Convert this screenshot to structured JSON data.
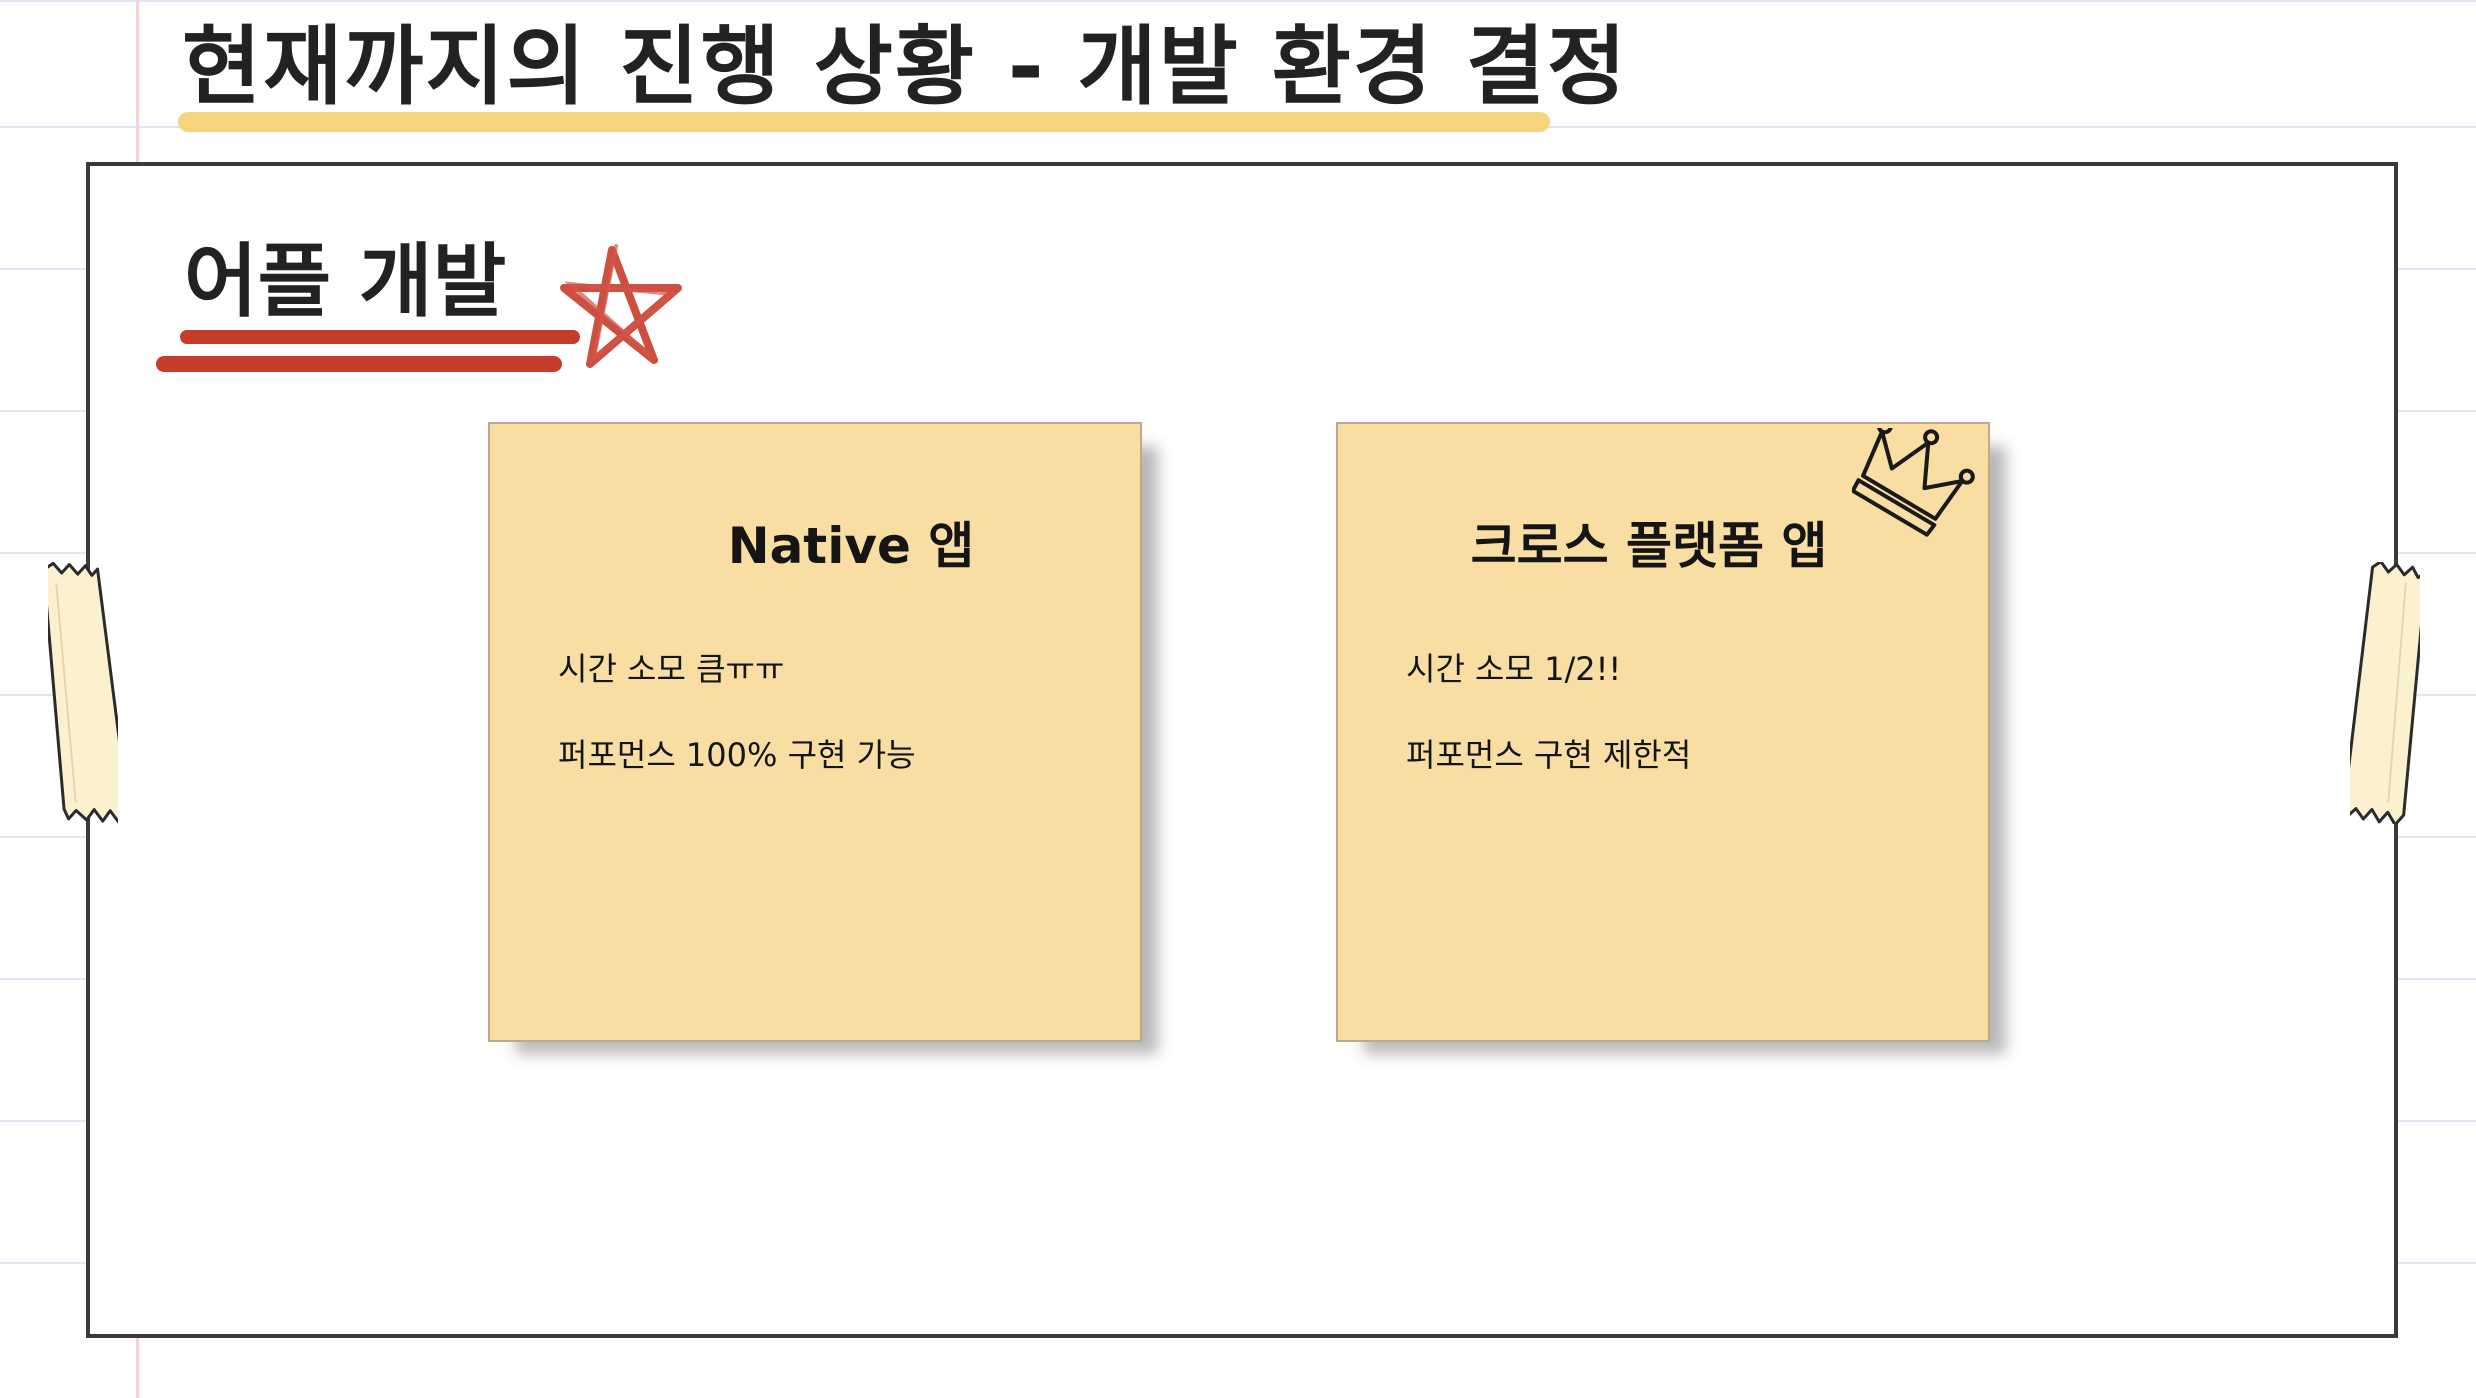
{
  "page": {
    "title": "현재까지의 진행 상황 - 개발 환경 결정",
    "section_title": "어플 개발"
  },
  "notes": [
    {
      "title": "Native 앱",
      "lines": [
        "시간 소모 큼ㅠㅠ",
        "퍼포먼스 100% 구현 가능"
      ]
    },
    {
      "title": "크로스 플랫폼 앱",
      "lines": [
        "시간 소모 1/2!!",
        "퍼포먼스 구현 제한적"
      ]
    }
  ],
  "icons": {
    "section_mark": "star-icon",
    "highlight_mark": "crown-icon",
    "tape": "tape-icon"
  },
  "colors": {
    "title_highlight": "#f7d57f",
    "section_underline": "#c63c2b",
    "sticky_note": "#f8dea3",
    "board_border": "#3a3a3a",
    "tape": "#fcf1cf"
  }
}
